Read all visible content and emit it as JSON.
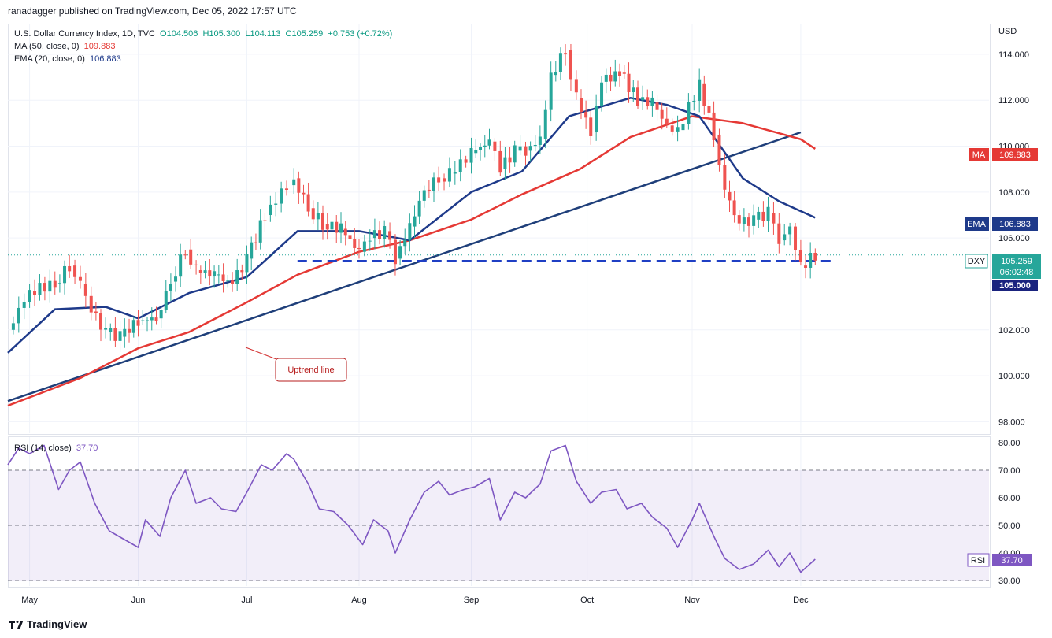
{
  "header": {
    "publisher_line": "ranadagger published on TradingView.com, Dec 05, 2022 17:57 UTC"
  },
  "legend": {
    "symbol_line": "U.S. Dollar Currency Index, 1D, TVC",
    "open": "O104.506",
    "high": "H105.300",
    "low": "L104.113",
    "close": "C105.259",
    "change": "+0.753 (+0.72%)",
    "ma_label": "MA (50, close, 0)",
    "ma_value": "109.883",
    "ema_label": "EMA (20, close, 0)",
    "ema_value": "106.883",
    "rsi_label": "RSI (14, close)",
    "rsi_value": "37.70"
  },
  "axis": {
    "currency": "USD"
  },
  "annotation": {
    "uptrend": "Uptrend line"
  },
  "badges": {
    "ma": {
      "label": "MA",
      "value": "109.883"
    },
    "ema": {
      "label": "EMA",
      "value": "106.883"
    },
    "dxy": {
      "label": "DXY",
      "value": "105.259",
      "countdown": "06:02:48"
    },
    "level": {
      "value": "105.000"
    },
    "rsi": {
      "label": "RSI",
      "value": "37.70"
    }
  },
  "footer": {
    "brand": "TradingView"
  },
  "colors": {
    "up": "#26a69a",
    "down": "#ef5350",
    "ma": "#e53935",
    "ema": "#1e3a8a",
    "trendline": "#1f3f7a",
    "rsi": "#7e57c2",
    "support": "#1f3fc4"
  },
  "chart_data": [
    {
      "type": "candlestick",
      "title": "U.S. Dollar Currency Index, 1D, TVC",
      "ylabel": "USD",
      "ylim": [
        97.5,
        115.3
      ],
      "y_ticks": [
        98,
        100,
        102,
        104,
        106,
        108,
        110,
        112,
        114
      ],
      "y_tick_labels": [
        "98.000",
        "100.000",
        "102.000",
        "104.000",
        "106.000",
        "108.000",
        "110.000",
        "112.000",
        "114.000"
      ],
      "x_labels": [
        {
          "label": "May",
          "date": "2022-05-02"
        },
        {
          "label": "Jun",
          "date": "2022-06-01"
        },
        {
          "label": "Jul",
          "date": "2022-07-01"
        },
        {
          "label": "Aug",
          "date": "2022-08-01"
        },
        {
          "label": "Sep",
          "date": "2022-09-01"
        },
        {
          "label": "Oct",
          "date": "2022-10-03"
        },
        {
          "label": "Nov",
          "date": "2022-11-01"
        },
        {
          "label": "Dec",
          "date": "2022-12-01"
        }
      ],
      "x_range": [
        "2022-04-26",
        "2023-01-22"
      ],
      "series": [
        {
          "name": "DXY close",
          "points": [
            [
              "2022-04-26",
              102.0
            ],
            [
              "2022-05-02",
              103.7
            ],
            [
              "2022-05-09",
              104.0
            ],
            [
              "2022-05-13",
              104.8
            ],
            [
              "2022-05-16",
              104.0
            ],
            [
              "2022-05-19",
              102.8
            ],
            [
              "2022-05-23",
              101.9
            ],
            [
              "2022-05-27",
              101.7
            ],
            [
              "2022-06-01",
              102.4
            ],
            [
              "2022-06-06",
              102.5
            ],
            [
              "2022-06-10",
              104.1
            ],
            [
              "2022-06-14",
              105.5
            ],
            [
              "2022-06-17",
              104.6
            ],
            [
              "2022-06-22",
              104.4
            ],
            [
              "2022-06-27",
              104.0
            ],
            [
              "2022-07-01",
              105.1
            ],
            [
              "2022-07-06",
              107.0
            ],
            [
              "2022-07-12",
              108.3
            ],
            [
              "2022-07-14",
              108.6
            ],
            [
              "2022-07-18",
              107.3
            ],
            [
              "2022-07-22",
              106.6
            ],
            [
              "2022-07-27",
              106.4
            ],
            [
              "2022-08-01",
              105.4
            ],
            [
              "2022-08-04",
              106.0
            ],
            [
              "2022-08-08",
              106.3
            ],
            [
              "2022-08-11",
              105.1
            ],
            [
              "2022-08-15",
              106.5
            ],
            [
              "2022-08-19",
              108.1
            ],
            [
              "2022-08-23",
              108.6
            ],
            [
              "2022-08-26",
              108.8
            ],
            [
              "2022-09-01",
              109.7
            ],
            [
              "2022-09-06",
              110.2
            ],
            [
              "2022-09-09",
              109.0
            ],
            [
              "2022-09-13",
              109.8
            ],
            [
              "2022-09-16",
              109.8
            ],
            [
              "2022-09-20",
              110.3
            ],
            [
              "2022-09-23",
              113.1
            ],
            [
              "2022-09-27",
              114.2
            ],
            [
              "2022-09-30",
              112.1
            ],
            [
              "2022-10-04",
              110.6
            ],
            [
              "2022-10-07",
              112.8
            ],
            [
              "2022-10-12",
              113.2
            ],
            [
              "2022-10-17",
              112.0
            ],
            [
              "2022-10-21",
              111.9
            ],
            [
              "2022-10-25",
              110.9
            ],
            [
              "2022-10-28",
              110.7
            ],
            [
              "2022-11-03",
              112.7
            ],
            [
              "2022-11-07",
              110.5
            ],
            [
              "2022-11-10",
              108.0
            ],
            [
              "2022-11-14",
              106.6
            ],
            [
              "2022-11-18",
              106.8
            ],
            [
              "2022-11-22",
              107.1
            ],
            [
              "2022-11-25",
              105.9
            ],
            [
              "2022-11-28",
              106.5
            ],
            [
              "2022-12-01",
              104.8
            ],
            [
              "2022-12-05",
              105.259
            ]
          ]
        },
        {
          "name": "MA (50, close, 0)",
          "points": [
            [
              "2022-04-26",
              98.7
            ],
            [
              "2022-05-16",
              99.9
            ],
            [
              "2022-06-01",
              101.2
            ],
            [
              "2022-06-15",
              101.9
            ],
            [
              "2022-07-01",
              103.2
            ],
            [
              "2022-07-15",
              104.4
            ],
            [
              "2022-08-01",
              105.4
            ],
            [
              "2022-08-15",
              105.9
            ],
            [
              "2022-09-01",
              106.8
            ],
            [
              "2022-09-15",
              107.9
            ],
            [
              "2022-10-01",
              109.0
            ],
            [
              "2022-10-15",
              110.4
            ],
            [
              "2022-11-01",
              111.3
            ],
            [
              "2022-11-15",
              111.0
            ],
            [
              "2022-12-01",
              110.3
            ],
            [
              "2022-12-05",
              109.883
            ]
          ]
        },
        {
          "name": "EMA (20, close, 0)",
          "points": [
            [
              "2022-04-26",
              101.0
            ],
            [
              "2022-05-09",
              102.9
            ],
            [
              "2022-05-23",
              103.0
            ],
            [
              "2022-06-01",
              102.5
            ],
            [
              "2022-06-15",
              103.6
            ],
            [
              "2022-07-01",
              104.3
            ],
            [
              "2022-07-15",
              106.3
            ],
            [
              "2022-08-01",
              106.3
            ],
            [
              "2022-08-08",
              106.1
            ],
            [
              "2022-08-15",
              105.9
            ],
            [
              "2022-09-01",
              108.0
            ],
            [
              "2022-09-15",
              108.9
            ],
            [
              "2022-09-28",
              111.3
            ],
            [
              "2022-10-15",
              112.1
            ],
            [
              "2022-10-25",
              111.8
            ],
            [
              "2022-11-03",
              111.3
            ],
            [
              "2022-11-15",
              108.6
            ],
            [
              "2022-11-25",
              107.6
            ],
            [
              "2022-12-05",
              106.883
            ]
          ]
        },
        {
          "name": "Uptrend line",
          "points": [
            [
              "2022-04-26",
              98.9
            ],
            [
              "2022-12-01",
              110.6
            ]
          ]
        },
        {
          "name": "Support",
          "points": [
            [
              "2022-07-15",
              105.0
            ],
            [
              "2022-12-10",
              105.0
            ]
          ]
        }
      ],
      "last_close": 105.259
    },
    {
      "type": "line",
      "title": "RSI (14, close)",
      "ylim": [
        28,
        82
      ],
      "y_ticks": [
        30,
        40,
        50,
        60,
        70,
        80
      ],
      "y_tick_labels": [
        "30.00",
        "40.00",
        "50.00",
        "60.00",
        "70.00",
        "80.00"
      ],
      "bands": [
        30,
        50,
        70
      ],
      "series": [
        {
          "name": "RSI (14, close)",
          "points": [
            [
              "2022-04-26",
              72
            ],
            [
              "2022-04-29",
              78
            ],
            [
              "2022-05-02",
              76
            ],
            [
              "2022-05-06",
              79
            ],
            [
              "2022-05-10",
              63
            ],
            [
              "2022-05-13",
              70
            ],
            [
              "2022-05-16",
              73
            ],
            [
              "2022-05-20",
              58
            ],
            [
              "2022-05-24",
              48
            ],
            [
              "2022-05-28",
              45
            ],
            [
              "2022-06-01",
              42
            ],
            [
              "2022-06-03",
              52
            ],
            [
              "2022-06-07",
              46
            ],
            [
              "2022-06-10",
              60
            ],
            [
              "2022-06-14",
              70
            ],
            [
              "2022-06-17",
              58
            ],
            [
              "2022-06-21",
              60
            ],
            [
              "2022-06-24",
              56
            ],
            [
              "2022-06-28",
              55
            ],
            [
              "2022-07-01",
              62
            ],
            [
              "2022-07-05",
              72
            ],
            [
              "2022-07-08",
              70
            ],
            [
              "2022-07-12",
              76
            ],
            [
              "2022-07-14",
              74
            ],
            [
              "2022-07-18",
              65
            ],
            [
              "2022-07-21",
              56
            ],
            [
              "2022-07-25",
              55
            ],
            [
              "2022-07-29",
              50
            ],
            [
              "2022-08-02",
              43
            ],
            [
              "2022-08-05",
              52
            ],
            [
              "2022-08-09",
              48
            ],
            [
              "2022-08-11",
              40
            ],
            [
              "2022-08-15",
              52
            ],
            [
              "2022-08-19",
              62
            ],
            [
              "2022-08-23",
              66
            ],
            [
              "2022-08-26",
              61
            ],
            [
              "2022-08-30",
              63
            ],
            [
              "2022-09-02",
              64
            ],
            [
              "2022-09-06",
              67
            ],
            [
              "2022-09-09",
              52
            ],
            [
              "2022-09-13",
              62
            ],
            [
              "2022-09-16",
              60
            ],
            [
              "2022-09-20",
              65
            ],
            [
              "2022-09-23",
              77
            ],
            [
              "2022-09-27",
              79
            ],
            [
              "2022-09-30",
              66
            ],
            [
              "2022-10-04",
              58
            ],
            [
              "2022-10-07",
              62
            ],
            [
              "2022-10-11",
              63
            ],
            [
              "2022-10-14",
              56
            ],
            [
              "2022-10-18",
              58
            ],
            [
              "2022-10-21",
              53
            ],
            [
              "2022-10-25",
              49
            ],
            [
              "2022-10-28",
              42
            ],
            [
              "2022-11-01",
              52
            ],
            [
              "2022-11-03",
              58
            ],
            [
              "2022-11-07",
              46
            ],
            [
              "2022-11-10",
              38
            ],
            [
              "2022-11-14",
              34
            ],
            [
              "2022-11-18",
              36
            ],
            [
              "2022-11-22",
              41
            ],
            [
              "2022-11-25",
              35
            ],
            [
              "2022-11-28",
              40
            ],
            [
              "2022-12-01",
              33
            ],
            [
              "2022-12-05",
              37.7
            ]
          ]
        }
      ]
    }
  ]
}
